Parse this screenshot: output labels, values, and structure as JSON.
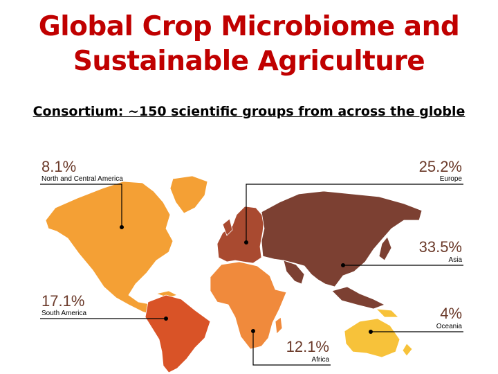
{
  "slide": {
    "title_line1": "Global Crop Microbiome and",
    "title_line2": "Sustainable Agriculture",
    "subtitle": "Consortium: ~150 scientific groups from across the globle"
  },
  "colors": {
    "north_america": "#f4a035",
    "south_america": "#d95327",
    "europe": "#a94a30",
    "africa": "#f08a3c",
    "asia": "#7c4032",
    "oceania": "#f7c23a",
    "title": "#c00000"
  },
  "regions": [
    {
      "key": "north_america",
      "percent": "8.1%",
      "name": "North and Central America"
    },
    {
      "key": "europe",
      "percent": "25.2%",
      "name": "Europe"
    },
    {
      "key": "asia",
      "percent": "33.5%",
      "name": "Asia"
    },
    {
      "key": "south_america",
      "percent": "17.1%",
      "name": "South America"
    },
    {
      "key": "oceania",
      "percent": "4%",
      "name": "Oceania"
    },
    {
      "key": "africa",
      "percent": "12.1%",
      "name": "Africa"
    }
  ]
}
